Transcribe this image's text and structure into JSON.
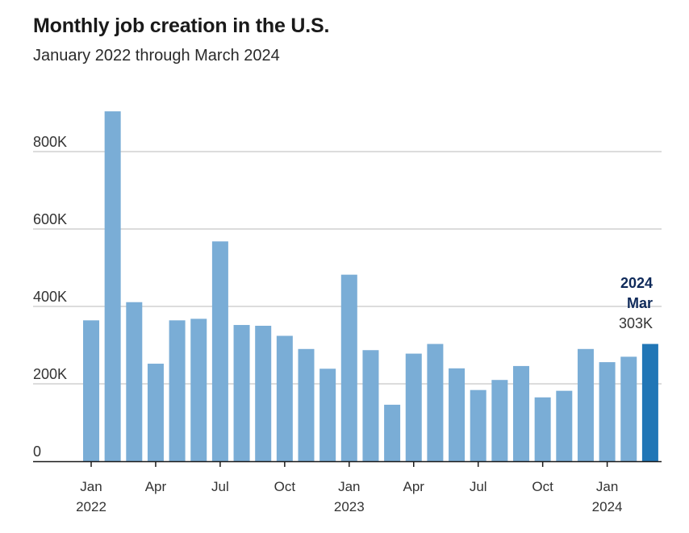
{
  "header": {
    "title": "Monthly job creation in the U.S.",
    "subtitle": "January 2022 through March 2024"
  },
  "annotation": {
    "year": "2024",
    "month": "Mar",
    "value": "303K"
  },
  "colors": {
    "bar": "#7aadd6",
    "highlight": "#2176b6",
    "grid": "#c8c8c8",
    "axis": "#1a1a1a"
  },
  "chart_data": {
    "type": "bar",
    "title": "Monthly job creation in the U.S.",
    "subtitle": "January 2022 through March 2024",
    "xlabel": "",
    "ylabel": "",
    "ylim": [
      0,
      900
    ],
    "grid": true,
    "units": "thousands of jobs",
    "yticks": [
      0,
      200,
      400,
      600,
      800
    ],
    "ytick_labels": [
      "0",
      "200K",
      "400K",
      "600K",
      "800K"
    ],
    "xticks": [
      {
        "index": 0,
        "label": "Jan",
        "sub": "2022"
      },
      {
        "index": 3,
        "label": "Apr",
        "sub": ""
      },
      {
        "index": 6,
        "label": "Jul",
        "sub": ""
      },
      {
        "index": 9,
        "label": "Oct",
        "sub": ""
      },
      {
        "index": 12,
        "label": "Jan",
        "sub": "2023"
      },
      {
        "index": 15,
        "label": "Apr",
        "sub": ""
      },
      {
        "index": 18,
        "label": "Jul",
        "sub": ""
      },
      {
        "index": 21,
        "label": "Oct",
        "sub": ""
      },
      {
        "index": 24,
        "label": "Jan",
        "sub": "2024"
      }
    ],
    "categories": [
      "Jan 2022",
      "Feb 2022",
      "Mar 2022",
      "Apr 2022",
      "May 2022",
      "Jun 2022",
      "Jul 2022",
      "Aug 2022",
      "Sep 2022",
      "Oct 2022",
      "Nov 2022",
      "Dec 2022",
      "Jan 2023",
      "Feb 2023",
      "Mar 2023",
      "Apr 2023",
      "May 2023",
      "Jun 2023",
      "Jul 2023",
      "Aug 2023",
      "Sep 2023",
      "Oct 2023",
      "Nov 2023",
      "Dec 2023",
      "Jan 2024",
      "Feb 2024",
      "Mar 2024"
    ],
    "values": [
      364,
      904,
      411,
      252,
      364,
      368,
      568,
      352,
      350,
      324,
      290,
      239,
      482,
      287,
      146,
      278,
      303,
      240,
      184,
      210,
      246,
      165,
      182,
      290,
      256,
      270,
      303
    ],
    "highlight_index": 26,
    "annotation": "2024 Mar 303K"
  }
}
